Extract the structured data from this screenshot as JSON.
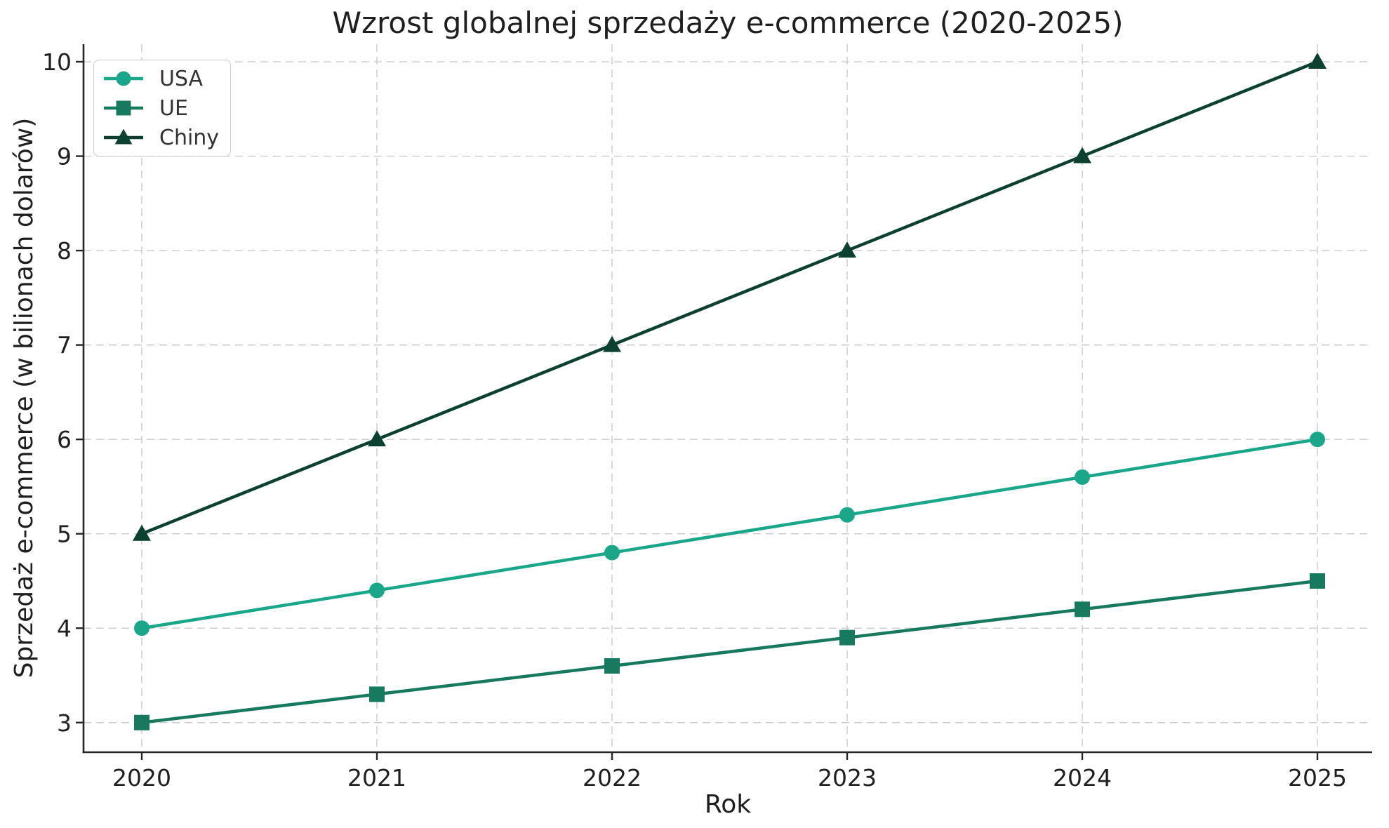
{
  "chart_data": {
    "type": "line",
    "title": "Wzrost globalnej sprzedaży e-commerce (2020-2025)",
    "xlabel": "Rok",
    "ylabel": "Sprzedaż e-commerce (w bilionach dolarów)",
    "categories": [
      "2020",
      "2021",
      "2022",
      "2023",
      "2024",
      "2025"
    ],
    "series": [
      {
        "name": "USA",
        "marker": "circle",
        "color": "#1aa689",
        "values": [
          4.0,
          4.4,
          4.8,
          5.2,
          5.6,
          6.0
        ]
      },
      {
        "name": "UE",
        "marker": "square",
        "color": "#17795e",
        "values": [
          3.0,
          3.3,
          3.6,
          3.9,
          4.2,
          4.5
        ]
      },
      {
        "name": "Chiny",
        "marker": "triangle",
        "color": "#0c4132",
        "values": [
          5.0,
          6.0,
          7.0,
          8.0,
          9.0,
          10.0
        ]
      }
    ],
    "yticks": [
      3,
      4,
      5,
      6,
      7,
      8,
      9,
      10
    ],
    "ylim": [
      2.686,
      10.186
    ],
    "grid": "dashed",
    "legend_position": "upper-left",
    "colors": {
      "background": "#ffffff",
      "grid": "#c9c9c9",
      "axis": "#262626",
      "text": "#1f1f1f",
      "legend_border": "#cccccc"
    }
  }
}
